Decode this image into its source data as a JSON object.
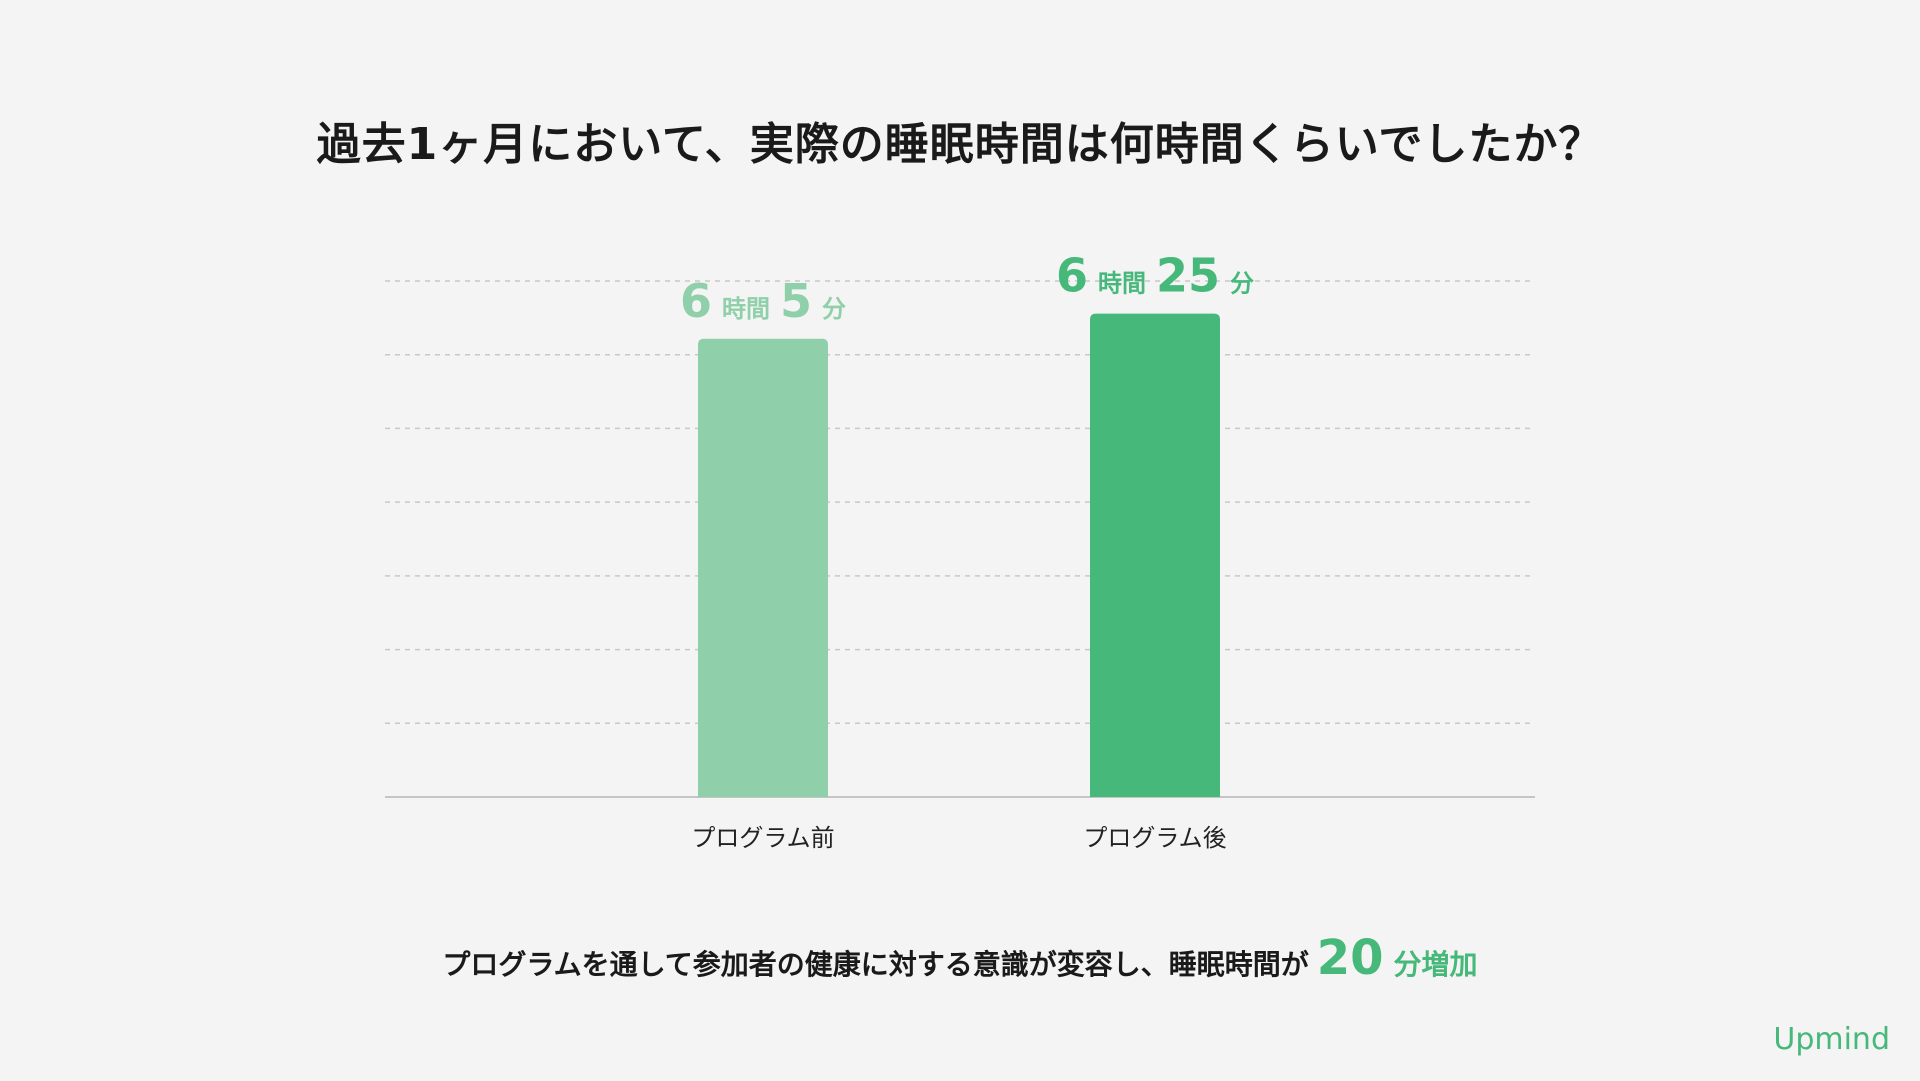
{
  "title": "過去1ヶ月において、実際の睡眠時間は何時間くらいでしたか？",
  "chart_data": {
    "type": "bar",
    "categories": [
      "プログラム前",
      "プログラム後"
    ],
    "values": [
      6.083,
      6.417
    ],
    "value_labels": [
      {
        "hours": "6",
        "hour_unit": "時間",
        "minutes": "5",
        "minute_unit": "分"
      },
      {
        "hours": "6",
        "hour_unit": "時間",
        "minutes": "25",
        "minute_unit": "分"
      }
    ],
    "bar_colors": [
      "#8fcfa9",
      "#46b87a"
    ],
    "grid": true,
    "grid_style": "dashed"
  },
  "summary": {
    "text": "プログラムを通して参加者の健康に対する意識が変容し、睡眠時間が",
    "number": "20",
    "unit": "分増加"
  },
  "logo": "Upmind",
  "colors": {
    "accent": "#46b87a",
    "accent_light": "#8fcfa9"
  }
}
